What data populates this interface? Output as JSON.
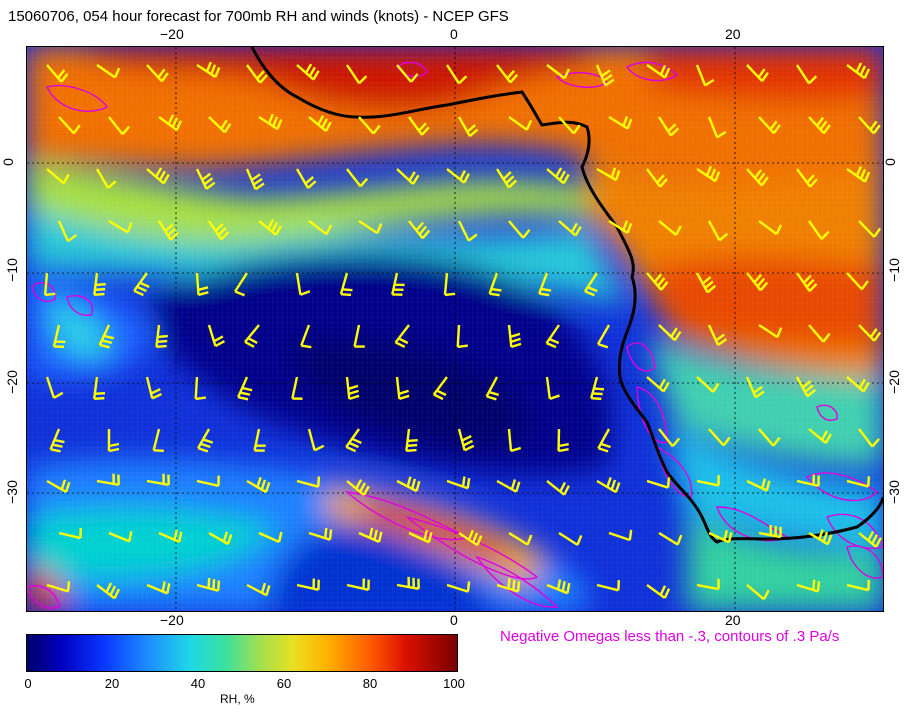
{
  "title": "15060706, 054 hour forecast for 700mb RH and winds (knots) - NCEP GFS",
  "axes": {
    "top_ticks": [
      "−20",
      "0",
      "20"
    ],
    "bottom_ticks": [
      "−20",
      "0",
      "20"
    ],
    "left_ticks": [
      "0",
      "−10",
      "−20",
      "−30"
    ],
    "right_ticks": [
      "0",
      "−10",
      "−20",
      "−30"
    ]
  },
  "note": "Negative Omegas less than -.3, contours of .3 Pa/s",
  "colorbar": {
    "ticks": [
      "0",
      "20",
      "40",
      "60",
      "80",
      "100"
    ],
    "label": "RH, %"
  },
  "colors": {
    "barbs": "#ffff00",
    "omega_contours": "#e000e0",
    "coastline": "#000000"
  }
}
